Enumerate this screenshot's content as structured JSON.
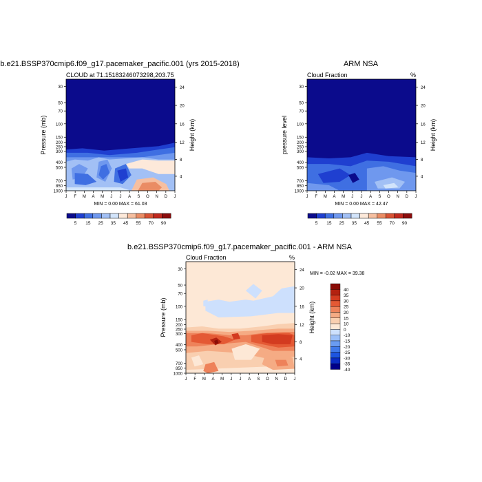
{
  "page": {
    "background": "#ffffff"
  },
  "levels": [
    5,
    15,
    25,
    35,
    45,
    55,
    70,
    90
  ],
  "colors": {
    "bottom": [
      "#0b0b8c",
      "#1f3fd0",
      "#3f6fe2",
      "#6f98ee",
      "#a2c0f5",
      "#d2e4fb",
      "#fde9da",
      "#f6bfa0",
      "#ea8c64",
      "#d85234",
      "#c0281e",
      "#8c0d0d"
    ],
    "diff": [
      "#000089",
      "#0a2cc3",
      "#1d55e0",
      "#3f79ea",
      "#6a9cf2",
      "#9bbff8",
      "#cde0fd",
      "#fde8d6",
      "#f9cfb0",
      "#f5ab84",
      "#ee825a",
      "#e45934",
      "#d33b20",
      "#b32110",
      "#8a0c06"
    ]
  },
  "charts": [
    {
      "title": "b.e21.BSSP370cmip6.f09_g17.pacemaker_pacific.001 (yrs 2015-2018)",
      "subtitle_left": "CLOUD at 71.1518324607329 8,203.75",
      "subtitle_left_exact": "CLOUD at 71.15183246073298,203.75",
      "subtitle_right": "",
      "ylabel": "Pressure (mb)",
      "y2label": "Height (km)",
      "stats": "MIN =   0.00 MAX =  61.03",
      "legend": "bottom"
    },
    {
      "title": "ARM NSA",
      "subtitle_left": "Cloud Fraction",
      "subtitle_right": "%",
      "ylabel": "pressure level",
      "y2label": "Height (km)",
      "stats": "MIN =   0.00 MAX =  42.47",
      "legend": "bottom"
    },
    {
      "title": "b.e21.BSSP370cmip6.f09_g17.pacemaker_pacific.001 - ARM NSA",
      "subtitle_left": "Cloud Fraction",
      "subtitle_right": "%",
      "ylabel": "Pressure (mb)",
      "y2label": "Height (km)",
      "stats": "MIN =  -0.02 MAX =  39.38",
      "legend": "right"
    }
  ],
  "chart_data": [
    {
      "type": "heatmap",
      "title": "b.e21.BSSP370cmip6.f09_g17.pacemaker_pacific.001 (yrs 2015-2018)",
      "subtitle": "CLOUD at 71.15183246073298,203.75",
      "xlabel": "",
      "ylabel": "Pressure (mb)",
      "y2label": "Height (km)",
      "x": [
        "J",
        "F",
        "M",
        "A",
        "M",
        "J",
        "J",
        "A",
        "S",
        "O",
        "N",
        "D",
        "J"
      ],
      "y_ticks": [
        30,
        50,
        70,
        100,
        150,
        200,
        250,
        300,
        400,
        500,
        700,
        850,
        1000
      ],
      "y2_ticks": [
        4,
        8,
        12,
        16,
        20,
        24
      ],
      "legend_levels": [
        5,
        15,
        25,
        35,
        45,
        55,
        70,
        90
      ],
      "min": 0.0,
      "max": 61.03
    },
    {
      "type": "heatmap",
      "title": "ARM NSA",
      "subtitle": "Cloud Fraction",
      "units": "%",
      "ylabel": "pressure level",
      "y2label": "Height (km)",
      "x": [
        "J",
        "F",
        "M",
        "A",
        "M",
        "J",
        "J",
        "A",
        "S",
        "O",
        "N",
        "D",
        "J"
      ],
      "y_ticks": [
        30,
        50,
        70,
        100,
        150,
        200,
        250,
        300,
        400,
        500,
        700,
        850,
        1000
      ],
      "y2_ticks": [
        4,
        8,
        12,
        16,
        20,
        24
      ],
      "legend_levels": [
        5,
        15,
        25,
        35,
        45,
        55,
        70,
        90
      ],
      "min": 0.0,
      "max": 42.47
    },
    {
      "type": "heatmap",
      "title": "b.e21.BSSP370cmip6.f09_g17.pacemaker_pacific.001 - ARM NSA",
      "subtitle": "Cloud Fraction",
      "units": "%",
      "ylabel": "Pressure (mb)",
      "y2label": "Height (km)",
      "x": [
        "J",
        "F",
        "M",
        "A",
        "M",
        "J",
        "J",
        "A",
        "S",
        "O",
        "N",
        "D",
        "J"
      ],
      "y_ticks": [
        30,
        50,
        70,
        100,
        150,
        200,
        250,
        300,
        400,
        500,
        700,
        850,
        1000
      ],
      "y2_ticks": [
        4,
        8,
        12,
        16,
        20,
        24
      ],
      "legend_levels": [
        40,
        35,
        30,
        25,
        20,
        15,
        10,
        0,
        -10,
        -15,
        -20,
        -25,
        -30,
        -35,
        -40
      ],
      "min": -0.02,
      "max": 39.38
    }
  ]
}
